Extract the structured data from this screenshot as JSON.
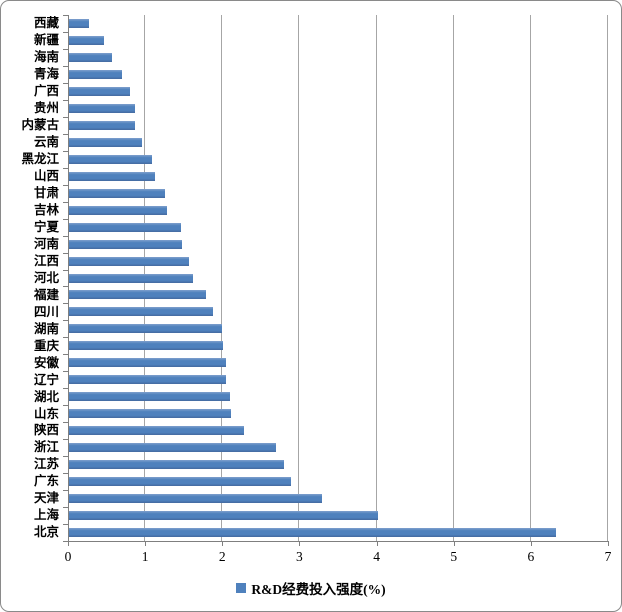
{
  "chart_data": {
    "type": "bar",
    "orientation": "horizontal",
    "title": "",
    "legend": "R&D经费投入强度(%)",
    "legend_position": "bottom",
    "grid": true,
    "xlim": [
      0,
      7
    ],
    "x_ticks": [
      "0",
      "1",
      "2",
      "3",
      "4",
      "5",
      "6",
      "7"
    ],
    "categories_top_to_bottom": [
      "西藏",
      "新疆",
      "海南",
      "青海",
      "广西",
      "贵州",
      "内蒙古",
      "云南",
      "黑龙江",
      "山西",
      "甘肃",
      "吉林",
      "宁夏",
      "河南",
      "江西",
      "河北",
      "福建",
      "四川",
      "湖南",
      "重庆",
      "安徽",
      "辽宁",
      "湖北",
      "山东",
      "陕西",
      "浙江",
      "江苏",
      "广东",
      "天津",
      "上海",
      "北京"
    ],
    "values": [
      0.26,
      0.46,
      0.56,
      0.69,
      0.79,
      0.86,
      0.86,
      0.95,
      1.08,
      1.12,
      1.25,
      1.27,
      1.45,
      1.46,
      1.55,
      1.61,
      1.78,
      1.87,
      1.98,
      1.99,
      2.03,
      2.04,
      2.09,
      2.1,
      2.27,
      2.68,
      2.79,
      2.88,
      3.28,
      4.0,
      6.31
    ]
  },
  "colors": {
    "bar": "#4F81BD",
    "bar_highlight": "#7FA0CD",
    "bar_shadow": "#44699F",
    "gridline": "#A6A6A6",
    "axis": "#7F7F7F",
    "text": "#000000",
    "frame_border": "#8A8A8A",
    "background": "#FFFFFF"
  }
}
